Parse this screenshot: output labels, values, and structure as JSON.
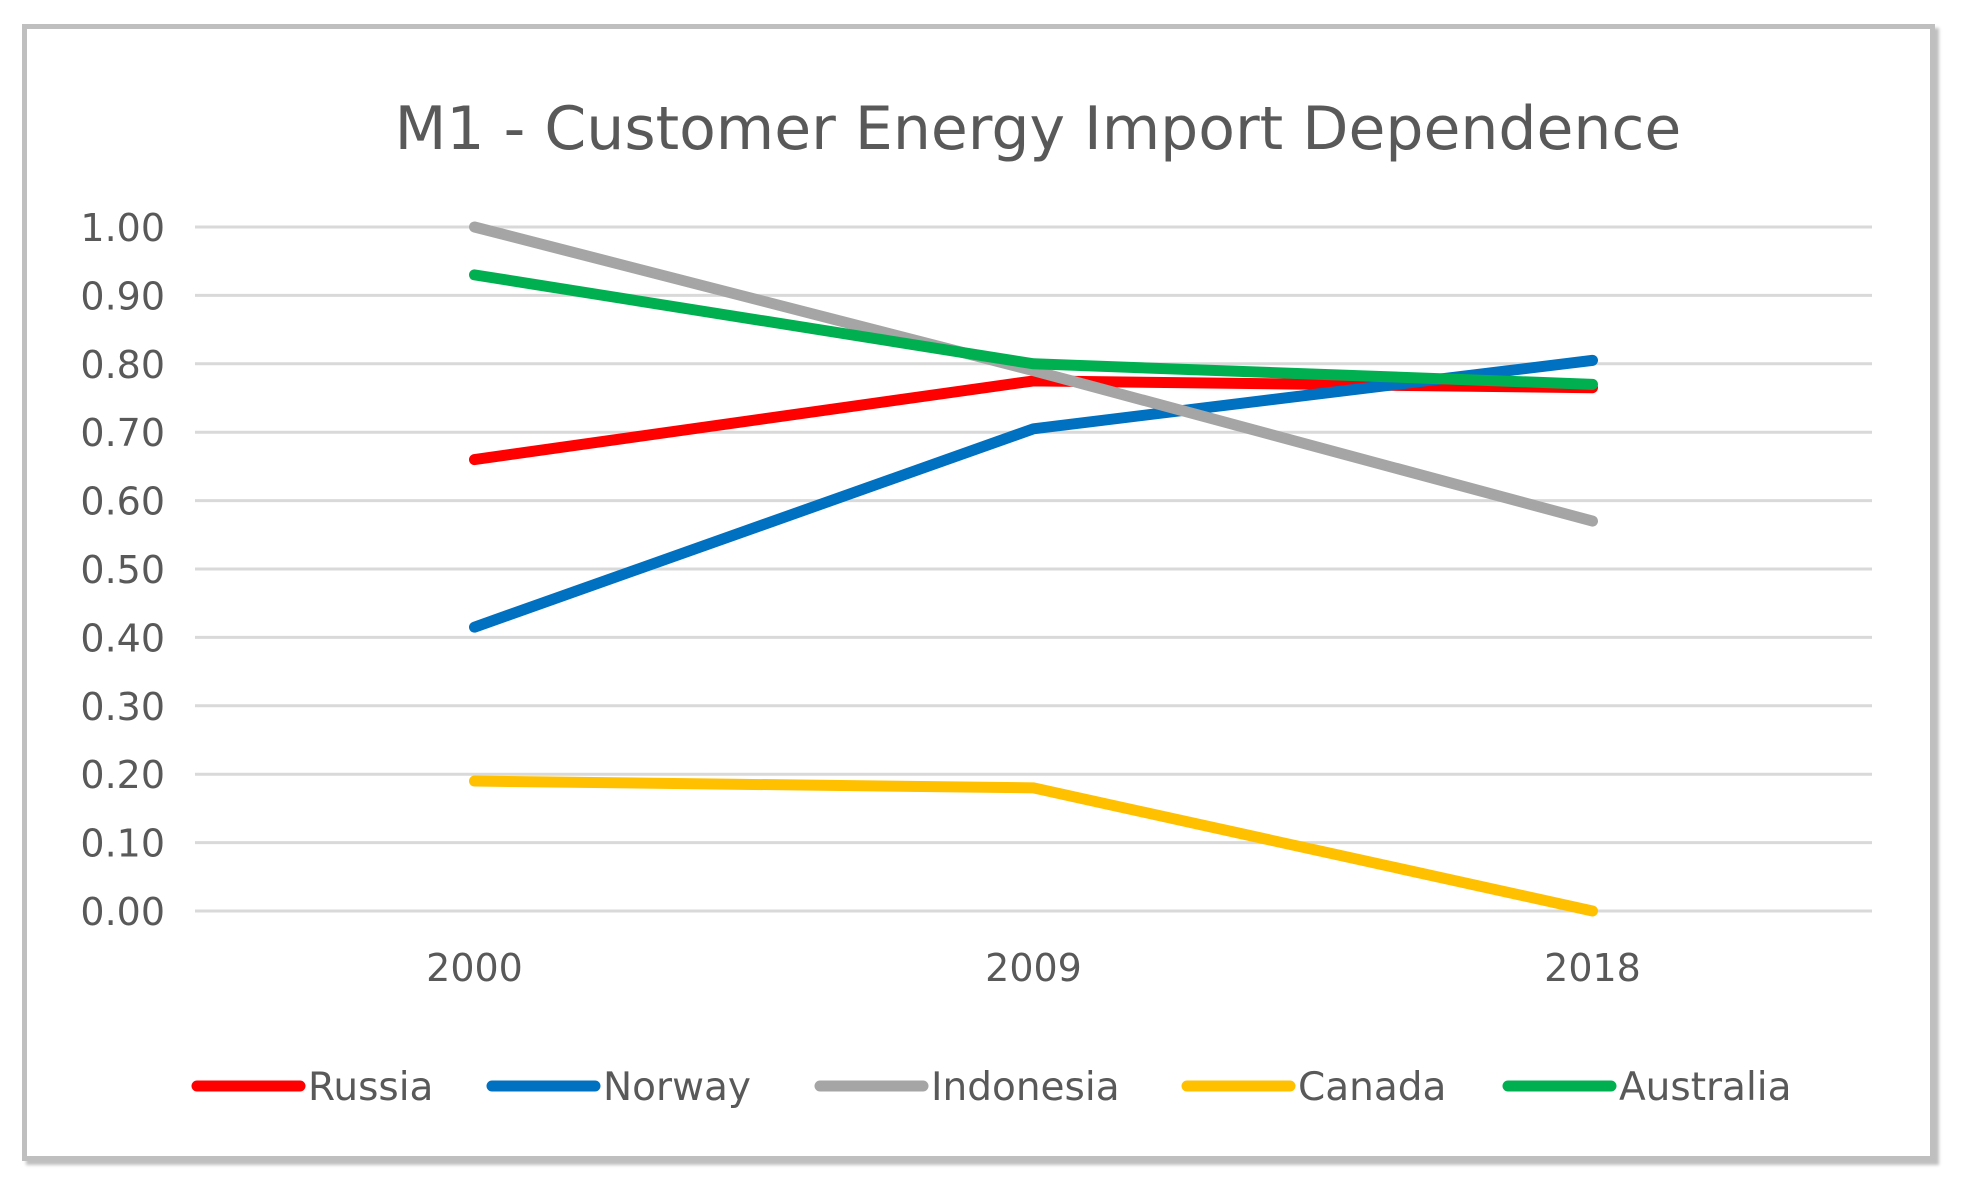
{
  "chart_data": {
    "type": "line",
    "title": "M1 - Customer Energy Import Dependence",
    "xlabel": "",
    "ylabel": "",
    "categories": [
      "2000",
      "2009",
      "2018"
    ],
    "y_ticks": [
      "0.00",
      "0.10",
      "0.20",
      "0.30",
      "0.40",
      "0.50",
      "0.60",
      "0.70",
      "0.80",
      "0.90",
      "1.00"
    ],
    "ylim": [
      0,
      1
    ],
    "grid": true,
    "legend_position": "bottom",
    "series": [
      {
        "name": "Russia",
        "color": "#ff0000",
        "values": [
          0.66,
          0.775,
          0.765
        ]
      },
      {
        "name": "Norway",
        "color": "#0070c0",
        "values": [
          0.415,
          0.705,
          0.805
        ]
      },
      {
        "name": "Indonesia",
        "color": "#a5a5a5",
        "values": [
          1.0,
          0.79,
          0.57
        ]
      },
      {
        "name": "Canada",
        "color": "#ffc000",
        "values": [
          0.19,
          0.18,
          0.0
        ]
      },
      {
        "name": "Australia",
        "color": "#00b050",
        "values": [
          0.93,
          0.8,
          0.77
        ]
      }
    ]
  }
}
